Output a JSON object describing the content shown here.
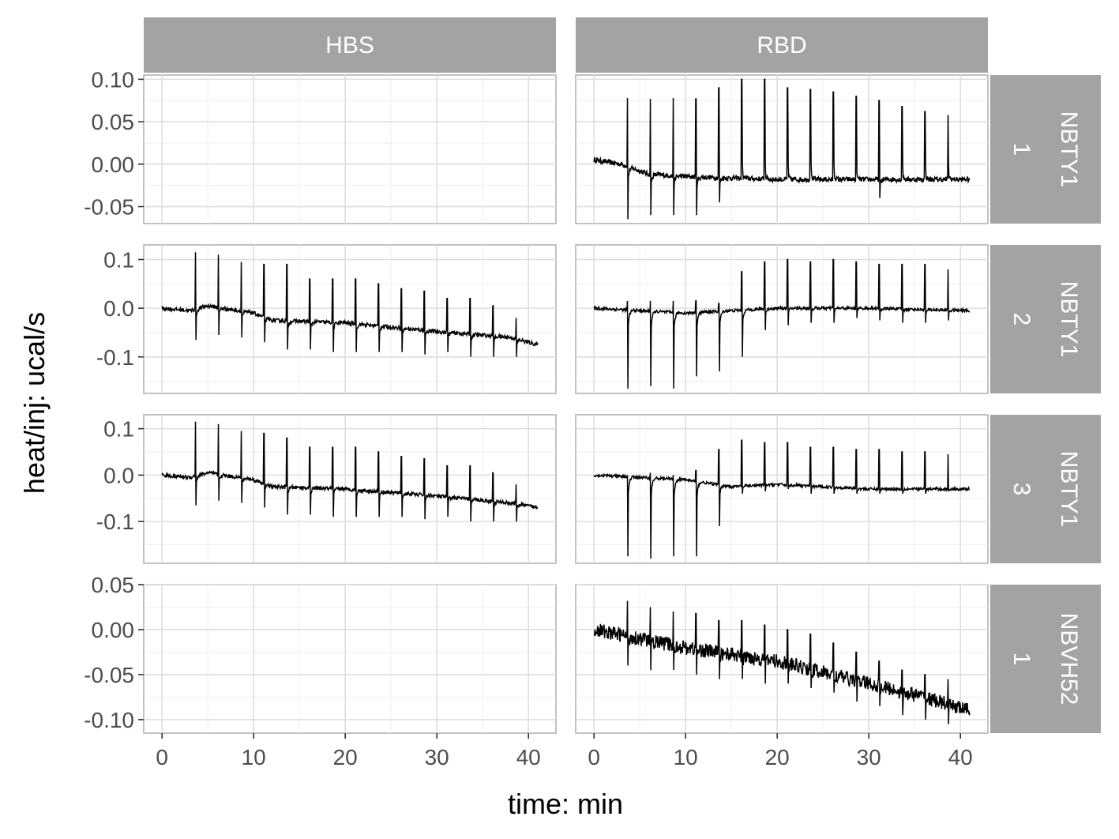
{
  "chart_data": {
    "type": "line",
    "title": "",
    "xlabel": "time: min",
    "ylabel": "heat/inj: ucal/s",
    "grid": true,
    "legend": "none",
    "line_color": "#000000",
    "strip_color": "#a3a3a3",
    "columns": [
      "HBS",
      "RBD"
    ],
    "rows": [
      {
        "strip": "NBTY1\n1",
        "ylim": [
          -0.07,
          0.105
        ],
        "yticks": [
          0.1,
          0.05,
          0.0,
          -0.05
        ],
        "ytick_labels": [
          "0.10",
          "0.05",
          "0.00",
          "-0.05"
        ]
      },
      {
        "strip": "NBTY1\n2",
        "ylim": [
          -0.175,
          0.13
        ],
        "yticks": [
          0.1,
          0.0,
          -0.1
        ],
        "ytick_labels": [
          "0.1",
          "0.0",
          "-0.1"
        ]
      },
      {
        "strip": "NBTY1\n3",
        "ylim": [
          -0.19,
          0.13
        ],
        "yticks": [
          0.1,
          0.0,
          -0.1
        ],
        "ytick_labels": [
          "0.1",
          "0.0",
          "-0.1"
        ]
      },
      {
        "strip": "NBVH52\n1",
        "ylim": [
          -0.115,
          0.05
        ],
        "yticks": [
          0.05,
          0.0,
          -0.05,
          -0.1
        ],
        "ytick_labels": [
          "0.05",
          "0.00",
          "-0.05",
          "-0.10"
        ]
      }
    ],
    "xlim": [
      -2,
      43
    ],
    "xticks": [
      0,
      10,
      20,
      30,
      40
    ],
    "xtick_labels": [
      "0",
      "10",
      "20",
      "30",
      "40"
    ],
    "injection_times": [
      3.6,
      6.1,
      8.6,
      11.1,
      13.6,
      16.1,
      18.6,
      21.1,
      23.6,
      26.1,
      28.6,
      31.1,
      33.6,
      36.1,
      38.6
    ],
    "series": [
      {
        "row": 0,
        "col": 0,
        "name": "",
        "x": [],
        "y": []
      },
      {
        "row": 0,
        "col": 1,
        "name": "",
        "duration": 41,
        "baseline": [
          [
            0,
            0.005
          ],
          [
            3,
            0.0
          ],
          [
            6,
            -0.012
          ],
          [
            11,
            -0.015
          ],
          [
            20,
            -0.018
          ],
          [
            30,
            -0.018
          ],
          [
            41,
            -0.018
          ]
        ],
        "spike_up": [
          0.078,
          0.077,
          0.078,
          0.077,
          0.09,
          0.1,
          0.1,
          0.09,
          0.088,
          0.085,
          0.08,
          0.075,
          0.068,
          0.062,
          0.058
        ],
        "spike_down": [
          -0.065,
          -0.06,
          -0.06,
          -0.06,
          -0.045,
          0,
          0,
          0,
          0,
          0,
          -0.01,
          -0.04,
          0,
          0,
          0
        ],
        "noise": 0.003
      },
      {
        "row": 1,
        "col": 0,
        "name": "",
        "duration": 41,
        "baseline": [
          [
            0,
            0.0
          ],
          [
            3,
            -0.005
          ],
          [
            5,
            0.005
          ],
          [
            10,
            -0.01
          ],
          [
            12,
            -0.025
          ],
          [
            20,
            -0.03
          ],
          [
            30,
            -0.048
          ],
          [
            38,
            -0.06
          ],
          [
            41,
            -0.075
          ]
        ],
        "spike_up": [
          0.115,
          0.11,
          0.095,
          0.09,
          0.09,
          0.06,
          0.06,
          0.06,
          0.05,
          0.04,
          0.035,
          0.02,
          0.02,
          0.005,
          -0.02
        ],
        "spike_down": [
          -0.065,
          -0.055,
          -0.06,
          -0.07,
          -0.085,
          -0.085,
          -0.09,
          -0.09,
          -0.09,
          -0.09,
          -0.095,
          -0.09,
          -0.1,
          -0.1,
          -0.1
        ],
        "noise": 0.004
      },
      {
        "row": 1,
        "col": 1,
        "name": "",
        "duration": 41,
        "baseline": [
          [
            0,
            0.0
          ],
          [
            5,
            -0.005
          ],
          [
            10,
            -0.01
          ],
          [
            15,
            -0.005
          ],
          [
            20,
            0.0
          ],
          [
            30,
            0.0
          ],
          [
            41,
            -0.005
          ]
        ],
        "spike_up": [
          0.015,
          0.015,
          0.015,
          0.015,
          0.01,
          0.075,
          0.095,
          0.1,
          0.095,
          0.1,
          0.095,
          0.09,
          0.09,
          0.09,
          0.08
        ],
        "spike_down": [
          -0.165,
          -0.16,
          -0.165,
          -0.14,
          -0.13,
          -0.1,
          -0.045,
          -0.035,
          -0.03,
          -0.03,
          -0.02,
          -0.025,
          -0.03,
          -0.03,
          -0.025
        ],
        "noise": 0.003
      },
      {
        "row": 2,
        "col": 0,
        "name": "",
        "duration": 41,
        "baseline": [
          [
            0,
            0.0
          ],
          [
            3,
            -0.005
          ],
          [
            5,
            0.005
          ],
          [
            10,
            -0.01
          ],
          [
            12,
            -0.025
          ],
          [
            20,
            -0.03
          ],
          [
            30,
            -0.045
          ],
          [
            38,
            -0.06
          ],
          [
            41,
            -0.07
          ]
        ],
        "spike_up": [
          0.115,
          0.11,
          0.095,
          0.09,
          0.08,
          0.06,
          0.06,
          0.06,
          0.05,
          0.04,
          0.035,
          0.02,
          0.02,
          0.005,
          -0.02
        ],
        "spike_down": [
          -0.065,
          -0.055,
          -0.06,
          -0.07,
          -0.085,
          -0.085,
          -0.09,
          -0.09,
          -0.09,
          -0.09,
          -0.095,
          -0.09,
          -0.1,
          -0.1,
          -0.1
        ],
        "noise": 0.004
      },
      {
        "row": 2,
        "col": 1,
        "name": "",
        "duration": 41,
        "baseline": [
          [
            0,
            0.0
          ],
          [
            5,
            -0.005
          ],
          [
            10,
            -0.01
          ],
          [
            15,
            -0.025
          ],
          [
            20,
            -0.02
          ],
          [
            30,
            -0.03
          ],
          [
            41,
            -0.03
          ]
        ],
        "spike_up": [
          0.0,
          0.005,
          0.0,
          0.01,
          0.055,
          0.075,
          0.07,
          0.07,
          0.06,
          0.06,
          0.055,
          0.055,
          0.05,
          0.05,
          0.045
        ],
        "spike_down": [
          -0.175,
          -0.18,
          -0.175,
          -0.175,
          -0.11,
          -0.04,
          -0.035,
          -0.03,
          -0.04,
          -0.04,
          -0.04,
          -0.04,
          -0.04,
          -0.04,
          -0.035
        ],
        "noise": 0.003
      },
      {
        "row": 3,
        "col": 0,
        "name": "",
        "x": [],
        "y": []
      },
      {
        "row": 3,
        "col": 1,
        "name": "",
        "duration": 41,
        "baseline": [
          [
            0,
            0.0
          ],
          [
            5,
            -0.01
          ],
          [
            10,
            -0.02
          ],
          [
            20,
            -0.035
          ],
          [
            30,
            -0.06
          ],
          [
            36,
            -0.075
          ],
          [
            41,
            -0.09
          ]
        ],
        "spike_up": [
          0.032,
          0.025,
          0.02,
          0.018,
          0.01,
          0.01,
          0.005,
          0.0,
          -0.005,
          -0.015,
          -0.025,
          -0.035,
          -0.045,
          -0.05,
          -0.055
        ],
        "spike_down": [
          -0.04,
          -0.045,
          -0.045,
          -0.05,
          -0.055,
          -0.055,
          -0.06,
          -0.06,
          -0.065,
          -0.07,
          -0.08,
          -0.085,
          -0.095,
          -0.1,
          -0.105
        ],
        "noise": 0.008
      }
    ]
  }
}
